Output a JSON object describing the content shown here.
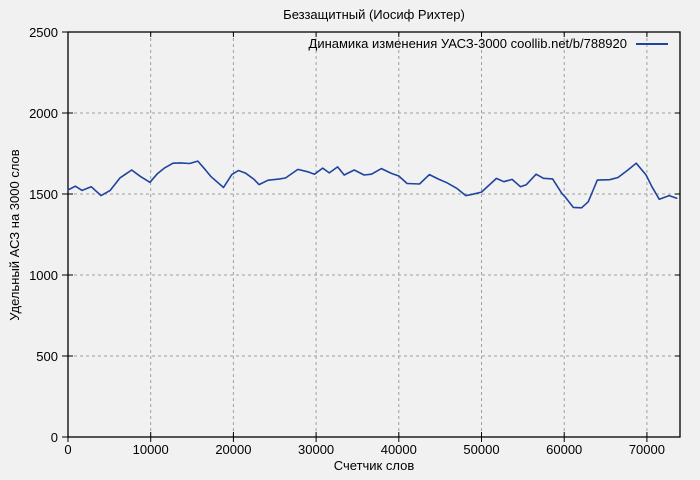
{
  "window": {
    "background": "#f1f1f1"
  },
  "chart_data": {
    "type": "line",
    "title": "Беззащитный (Иосиф Рихтер)",
    "xlabel": "Счетчик слов",
    "ylabel": "Удельный АСЗ на 3000 слов",
    "xlim": [
      0,
      74000
    ],
    "ylim": [
      0,
      2500
    ],
    "xticks": [
      0,
      10000,
      20000,
      30000,
      40000,
      50000,
      60000,
      70000
    ],
    "yticks": [
      0,
      500,
      1000,
      1500,
      2000,
      2500
    ],
    "grid": true,
    "legend": {
      "label": "Динамика изменения УАСЗ-3000 coollib.net/b/788920",
      "position": "top-right-inside"
    },
    "colors": {
      "line": "#1f449e",
      "grid": "#a0a0a0",
      "border": "#000000",
      "text": "#000000",
      "background": "#f1f1f1"
    },
    "series": [
      {
        "name": "Динамика изменения УАСЗ-3000 coollib.net/b/788920",
        "x": [
          0,
          900,
          1700,
          2800,
          4000,
          5100,
          6300,
          7700,
          8700,
          9900,
          10800,
          11700,
          12700,
          13600,
          14700,
          15700,
          16600,
          17300,
          18800,
          19800,
          20600,
          21500,
          22500,
          23100,
          24200,
          25500,
          26300,
          27800,
          29000,
          29800,
          30800,
          31600,
          32600,
          33400,
          34600,
          35800,
          36700,
          37900,
          39100,
          40000,
          41000,
          42500,
          43700,
          44800,
          45800,
          47000,
          48100,
          48900,
          50000,
          51800,
          52700,
          53700,
          54700,
          55400,
          56600,
          57500,
          58600,
          59700,
          60100,
          61100,
          62100,
          62900,
          63500,
          64000,
          65500,
          66500,
          67700,
          68700,
          69900,
          70600,
          71500,
          72700,
          73600
        ],
        "y": [
          1525,
          1548,
          1522,
          1545,
          1490,
          1522,
          1600,
          1648,
          1610,
          1572,
          1625,
          1662,
          1690,
          1692,
          1688,
          1703,
          1650,
          1607,
          1540,
          1620,
          1645,
          1628,
          1590,
          1558,
          1585,
          1592,
          1599,
          1652,
          1637,
          1622,
          1660,
          1630,
          1667,
          1617,
          1648,
          1617,
          1622,
          1657,
          1627,
          1611,
          1565,
          1562,
          1620,
          1592,
          1570,
          1535,
          1490,
          1498,
          1512,
          1596,
          1576,
          1590,
          1545,
          1557,
          1622,
          1597,
          1593,
          1505,
          1483,
          1417,
          1415,
          1452,
          1525,
          1586,
          1588,
          1602,
          1648,
          1690,
          1617,
          1545,
          1467,
          1490,
          1474
        ]
      }
    ]
  }
}
